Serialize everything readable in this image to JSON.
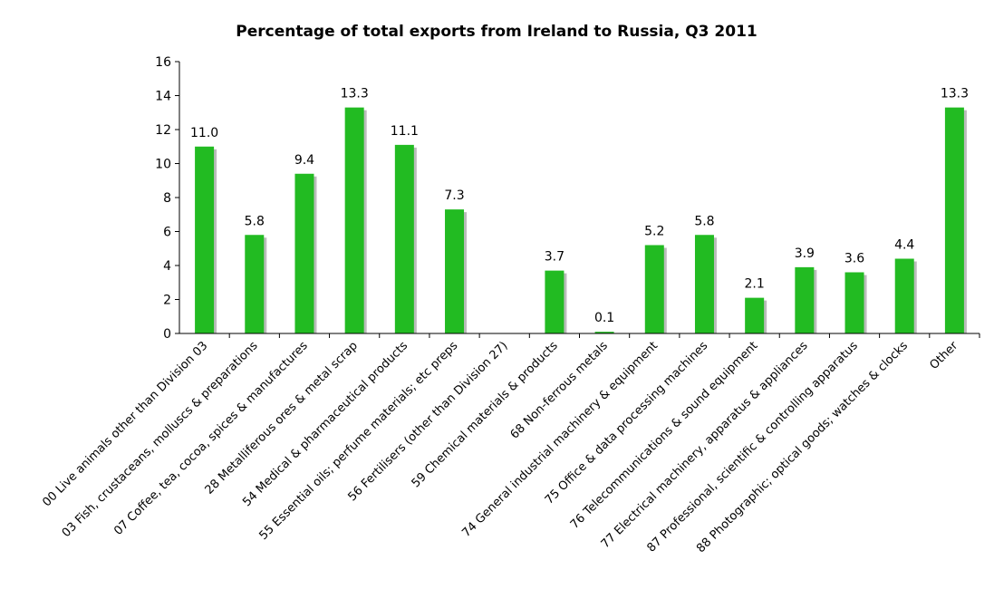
{
  "chart_data": {
    "type": "bar",
    "title": "Percentage of total exports from Ireland to Russia, Q3 2011",
    "xlabel": "",
    "ylabel": "",
    "ylim": [
      0,
      16
    ],
    "yticks": [
      0,
      2,
      4,
      6,
      8,
      10,
      12,
      14,
      16
    ],
    "categories": [
      "00 Live animals other than Division 03",
      "03 Fish, crustaceans, molluscs & preparations",
      "07 Coffee, tea, cocoa, spices & manufactures",
      "28 Metalliferous ores & metal scrap",
      "54 Medical & pharmaceutical products",
      "55 Essential oils; perfume materials; etc preps",
      "56 Fertilisers (other than Division 27)",
      "59 Chemical materials & products",
      "68 Non-ferrous metals",
      "74 General industrial machinery & equipment",
      "75 Office & data processing machines",
      "76 Telecommunications & sound equipment",
      "77 Electrical machinery, apparatus & appliances",
      "87 Professional, scientific & controlling apparatus",
      "88 Photographic; optical goods; watches & clocks",
      "Other"
    ],
    "values": [
      11.0,
      5.8,
      9.4,
      13.3,
      11.1,
      7.3,
      0,
      3.7,
      0.1,
      5.2,
      5.8,
      2.1,
      3.9,
      3.6,
      4.4,
      13.3
    ],
    "data_labels": [
      "11.0",
      "5.8",
      "9.4",
      "13.3",
      "11.1",
      "7.3",
      "",
      "3.7",
      "0.1",
      "5.2",
      "5.8",
      "2.1",
      "3.9",
      "3.6",
      "4.4",
      "13.3"
    ],
    "bar_color": "#22bb22",
    "shadow_color": "#bbbbbb",
    "grid": false,
    "legend": "none"
  }
}
